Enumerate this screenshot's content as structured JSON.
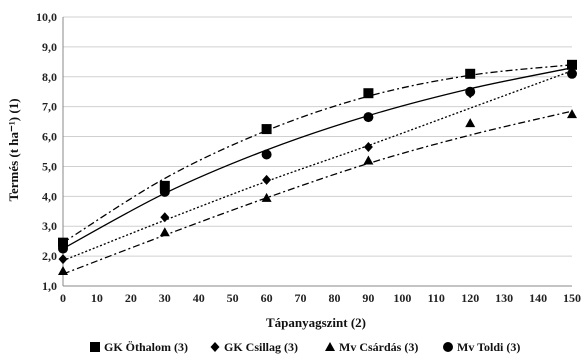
{
  "chart_data": {
    "type": "scatter",
    "xlabel": "Tápanyagszint (2)",
    "ylabel": "Termés (t ha⁻¹) (1)",
    "xlim": [
      0,
      150
    ],
    "ylim": [
      1.0,
      10.0
    ],
    "x_ticks": [
      0,
      10,
      20,
      30,
      40,
      50,
      60,
      70,
      80,
      90,
      100,
      110,
      120,
      130,
      140,
      150
    ],
    "y_ticks": [
      "1,0",
      "2,0",
      "3,0",
      "4,0",
      "5,0",
      "6,0",
      "7,0",
      "8,0",
      "9,0",
      "10,0"
    ],
    "grid": "horizontal",
    "legend_position": "bottom",
    "x": [
      0,
      30,
      60,
      90,
      120,
      150
    ],
    "series": [
      {
        "name": "GK Öthalom (3)",
        "marker": "square",
        "line": "dash-dot",
        "values": [
          2.45,
          4.35,
          6.25,
          7.45,
          8.1,
          8.4
        ],
        "trend": [
          2.45,
          4.6,
          6.2,
          7.35,
          8.05,
          8.4
        ]
      },
      {
        "name": "GK Csillag (3)",
        "marker": "diamond",
        "line": "dotted",
        "values": [
          1.9,
          3.3,
          4.55,
          5.65,
          7.45,
          8.15
        ],
        "trend": [
          1.85,
          3.2,
          4.5,
          5.7,
          6.95,
          8.2
        ]
      },
      {
        "name": "Mv Csárdás (3)",
        "marker": "triangle",
        "line": "dash-dot",
        "values": [
          1.5,
          2.8,
          3.95,
          5.2,
          6.45,
          6.75
        ],
        "trend": [
          1.4,
          2.7,
          3.95,
          5.1,
          6.05,
          6.85
        ]
      },
      {
        "name": "Mv Toldi (3)",
        "marker": "circle",
        "line": "solid",
        "values": [
          2.25,
          4.15,
          5.4,
          6.65,
          7.5,
          8.1
        ],
        "trend": [
          2.25,
          4.1,
          5.55,
          6.7,
          7.6,
          8.3
        ]
      }
    ]
  }
}
